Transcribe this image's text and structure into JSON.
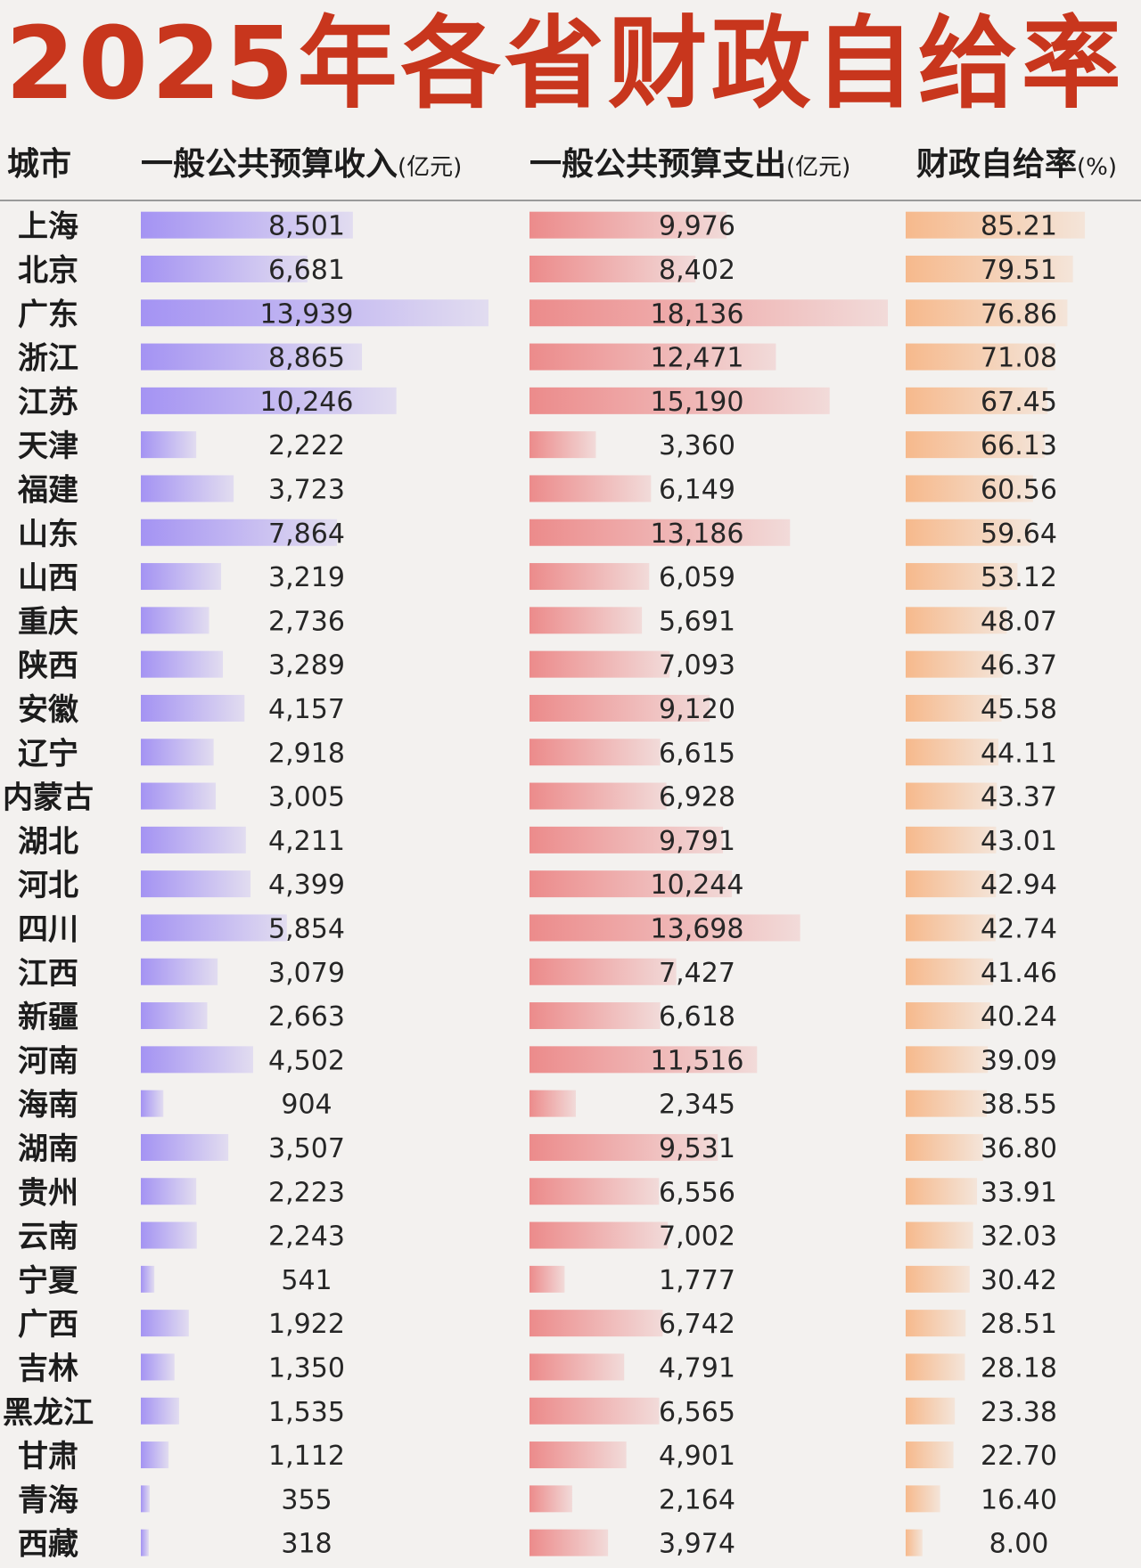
{
  "chart_data": {
    "type": "table",
    "title": "2025年各省财政自给率",
    "columns": [
      {
        "label": "城市",
        "unit": ""
      },
      {
        "label": "一般公共预算收入",
        "unit": "(亿元)"
      },
      {
        "label": "一般公共预算支出",
        "unit": "(亿元)"
      },
      {
        "label": "财政自给率",
        "unit": "(%)"
      }
    ],
    "colors": {
      "title": "#c8361d",
      "revenue": "#a493f3",
      "expenditure": "#ec8b8b",
      "ratio": "#f6b98c"
    },
    "rows": [
      {
        "city": "上海",
        "revenue": "8,501",
        "expenditure": "9,976",
        "ratio": "85.21"
      },
      {
        "city": "北京",
        "revenue": "6,681",
        "expenditure": "8,402",
        "ratio": "79.51"
      },
      {
        "city": "广东",
        "revenue": "13,939",
        "expenditure": "18,136",
        "ratio": "76.86"
      },
      {
        "city": "浙江",
        "revenue": "8,865",
        "expenditure": "12,471",
        "ratio": "71.08"
      },
      {
        "city": "江苏",
        "revenue": "10,246",
        "expenditure": "15,190",
        "ratio": "67.45"
      },
      {
        "city": "天津",
        "revenue": "2,222",
        "expenditure": "3,360",
        "ratio": "66.13"
      },
      {
        "city": "福建",
        "revenue": "3,723",
        "expenditure": "6,149",
        "ratio": "60.56"
      },
      {
        "city": "山东",
        "revenue": "7,864",
        "expenditure": "13,186",
        "ratio": "59.64"
      },
      {
        "city": "山西",
        "revenue": "3,219",
        "expenditure": "6,059",
        "ratio": "53.12"
      },
      {
        "city": "重庆",
        "revenue": "2,736",
        "expenditure": "5,691",
        "ratio": "48.07"
      },
      {
        "city": "陕西",
        "revenue": "3,289",
        "expenditure": "7,093",
        "ratio": "46.37"
      },
      {
        "city": "安徽",
        "revenue": "4,157",
        "expenditure": "9,120",
        "ratio": "45.58"
      },
      {
        "city": "辽宁",
        "revenue": "2,918",
        "expenditure": "6,615",
        "ratio": "44.11"
      },
      {
        "city": "内蒙古",
        "revenue": "3,005",
        "expenditure": "6,928",
        "ratio": "43.37"
      },
      {
        "city": "湖北",
        "revenue": "4,211",
        "expenditure": "9,791",
        "ratio": "43.01"
      },
      {
        "city": "河北",
        "revenue": "4,399",
        "expenditure": "10,244",
        "ratio": "42.94"
      },
      {
        "city": "四川",
        "revenue": "5,854",
        "expenditure": "13,698",
        "ratio": "42.74"
      },
      {
        "city": "江西",
        "revenue": "3,079",
        "expenditure": "7,427",
        "ratio": "41.46"
      },
      {
        "city": "新疆",
        "revenue": "2,663",
        "expenditure": "6,618",
        "ratio": "40.24"
      },
      {
        "city": "河南",
        "revenue": "4,502",
        "expenditure": "11,516",
        "ratio": "39.09"
      },
      {
        "city": "海南",
        "revenue": "904",
        "expenditure": "2,345",
        "ratio": "38.55"
      },
      {
        "city": "湖南",
        "revenue": "3,507",
        "expenditure": "9,531",
        "ratio": "36.80"
      },
      {
        "city": "贵州",
        "revenue": "2,223",
        "expenditure": "6,556",
        "ratio": "33.91"
      },
      {
        "city": "云南",
        "revenue": "2,243",
        "expenditure": "7,002",
        "ratio": "32.03"
      },
      {
        "city": "宁夏",
        "revenue": "541",
        "expenditure": "1,777",
        "ratio": "30.42"
      },
      {
        "city": "广西",
        "revenue": "1,922",
        "expenditure": "6,742",
        "ratio": "28.51"
      },
      {
        "city": "吉林",
        "revenue": "1,350",
        "expenditure": "4,791",
        "ratio": "28.18"
      },
      {
        "city": "黑龙江",
        "revenue": "1,535",
        "expenditure": "6,565",
        "ratio": "23.38"
      },
      {
        "city": "甘肃",
        "revenue": "1,112",
        "expenditure": "4,901",
        "ratio": "22.70"
      },
      {
        "city": "青海",
        "revenue": "355",
        "expenditure": "2,164",
        "ratio": "16.40"
      },
      {
        "city": "西藏",
        "revenue": "318",
        "expenditure": "3,974",
        "ratio": "8.00"
      }
    ]
  }
}
